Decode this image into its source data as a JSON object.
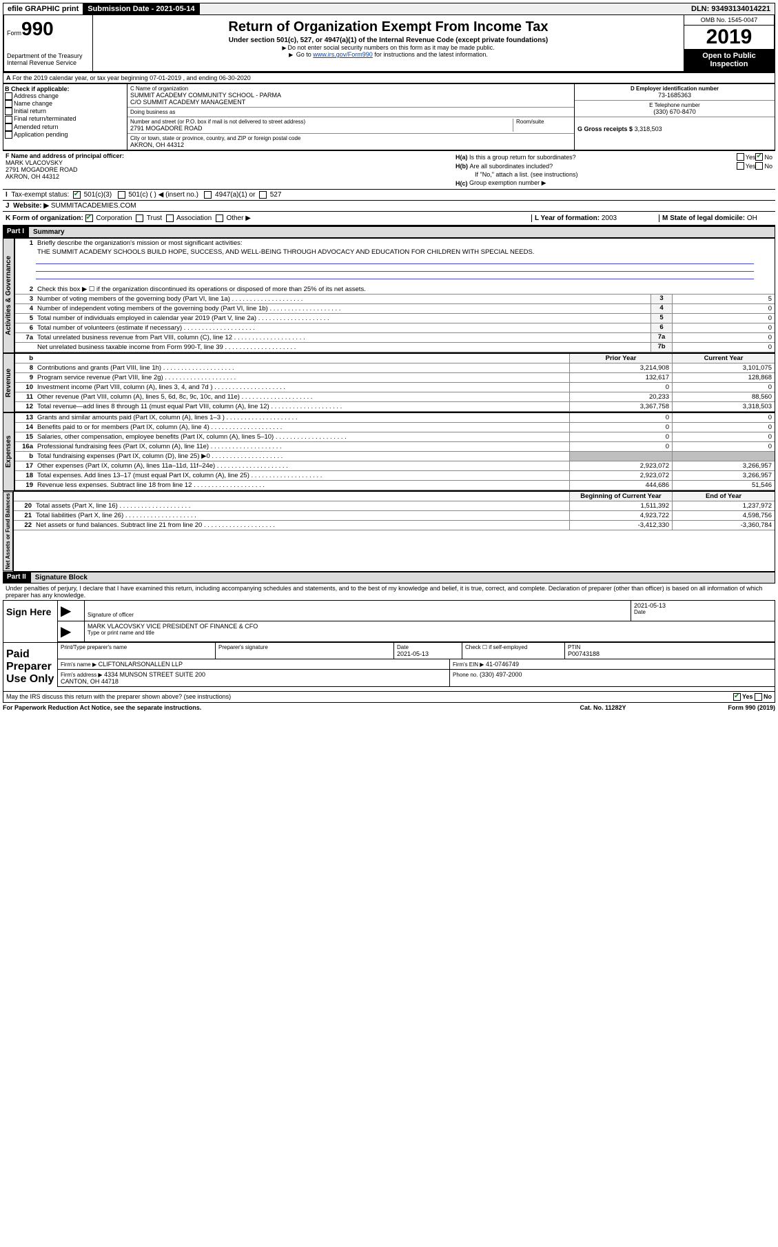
{
  "topbar": {
    "efile": "efile GRAPHIC print",
    "submission": "Submission Date - 2021-05-14",
    "dln": "DLN: 93493134014221"
  },
  "header": {
    "form_label": "Form",
    "form_no": "990",
    "title": "Return of Organization Exempt From Income Tax",
    "sub": "Under section 501(c), 527, or 4947(a)(1) of the Internal Revenue Code (except private foundations)",
    "note1": "Do not enter social security numbers on this form as it may be made public.",
    "note2a": "Go to ",
    "note2_link": "www.irs.gov/Form990",
    "note2b": " for instructions and the latest information.",
    "omb": "OMB No. 1545-0047",
    "year": "2019",
    "open": "Open to Public Inspection",
    "dept": "Department of the Treasury\nInternal Revenue Service"
  },
  "period": "For the 2019 calendar year, or tax year beginning 07-01-2019    , and ending 06-30-2020",
  "b": {
    "label": "B Check if applicable:",
    "items": [
      "Address change",
      "Name change",
      "Initial return",
      "Final return/terminated",
      "Amended return",
      "Application pending"
    ]
  },
  "c": {
    "name_lbl": "C Name of organization",
    "name": "SUMMIT ACADEMY COMMUNITY SCHOOL - PARMA\nC/O SUMMIT ACADEMY MANAGEMENT",
    "dba_lbl": "Doing business as",
    "dba": "",
    "addr_lbl": "Number and street (or P.O. box if mail is not delivered to street address)",
    "addr": "2791 MOGADORE ROAD",
    "room_lbl": "Room/suite",
    "city_lbl": "City or town, state or province, country, and ZIP or foreign postal code",
    "city": "AKRON, OH   44312"
  },
  "d": {
    "ein_lbl": "D Employer identification number",
    "ein": "73-1685363",
    "phone_lbl": "E Telephone number",
    "phone": "(330) 670-8470",
    "gross_lbl": "G Gross receipts $",
    "gross": "3,318,503"
  },
  "f": {
    "lbl": "F  Name and address of principal officer:",
    "name": "MARK VLACOVSKY",
    "addr1": "2791 MOGADORE ROAD",
    "addr2": "AKRON, OH   44312"
  },
  "h": {
    "a": "Is this a group return for subordinates?",
    "b": "Are all subordinates included?",
    "bnote": "If \"No,\" attach a list. (see instructions)",
    "c": "Group exemption number ▶",
    "yes": "Yes",
    "no": "No"
  },
  "i": {
    "lbl": "Tax-exempt status:",
    "o1": "501(c)(3)",
    "o2": "501(c) (   ) ◀ (insert no.)",
    "o3": "4947(a)(1) or",
    "o4": "527"
  },
  "j": {
    "lbl": "Website: ▶",
    "val": "SUMMITACADEMIES.COM"
  },
  "k": {
    "lbl": "K Form of organization:",
    "o1": "Corporation",
    "o2": "Trust",
    "o3": "Association",
    "o4": "Other ▶"
  },
  "l": {
    "lbl": "L Year of formation:",
    "val": "2003"
  },
  "m": {
    "lbl": "M State of legal domicile:",
    "val": "OH"
  },
  "part1": {
    "hdr": "Part I",
    "title": "Summary",
    "q1": "Briefly describe the organization's mission or most significant activities:",
    "mission": "THE SUMMIT ACADEMY SCHOOLS BUILD HOPE, SUCCESS, AND WELL-BEING THROUGH ADVOCACY AND EDUCATION FOR CHILDREN WITH SPECIAL NEEDS.",
    "q2": "Check this box ▶ ☐ if the organization discontinued its operations or disposed of more than 25% of its net assets.",
    "rows_gov": [
      {
        "n": "3",
        "d": "Number of voting members of the governing body (Part VI, line 1a)",
        "b": "3",
        "v": "5"
      },
      {
        "n": "4",
        "d": "Number of independent voting members of the governing body (Part VI, line 1b)",
        "b": "4",
        "v": "0"
      },
      {
        "n": "5",
        "d": "Total number of individuals employed in calendar year 2019 (Part V, line 2a)",
        "b": "5",
        "v": "0"
      },
      {
        "n": "6",
        "d": "Total number of volunteers (estimate if necessary)",
        "b": "6",
        "v": "0"
      },
      {
        "n": "7a",
        "d": "Total unrelated business revenue from Part VIII, column (C), line 12",
        "b": "7a",
        "v": "0"
      },
      {
        "n": "",
        "d": "Net unrelated business taxable income from Form 990-T, line 39",
        "b": "7b",
        "v": "0"
      }
    ],
    "col_prior": "Prior Year",
    "col_curr": "Current Year",
    "rev_rows": [
      {
        "n": "8",
        "d": "Contributions and grants (Part VIII, line 1h)",
        "p": "3,214,908",
        "c": "3,101,075"
      },
      {
        "n": "9",
        "d": "Program service revenue (Part VIII, line 2g)",
        "p": "132,617",
        "c": "128,868"
      },
      {
        "n": "10",
        "d": "Investment income (Part VIII, column (A), lines 3, 4, and 7d )",
        "p": "0",
        "c": "0"
      },
      {
        "n": "11",
        "d": "Other revenue (Part VIII, column (A), lines 5, 6d, 8c, 9c, 10c, and 11e)",
        "p": "20,233",
        "c": "88,560"
      },
      {
        "n": "12",
        "d": "Total revenue—add lines 8 through 11 (must equal Part VIII, column (A), line 12)",
        "p": "3,367,758",
        "c": "3,318,503"
      }
    ],
    "exp_rows": [
      {
        "n": "13",
        "d": "Grants and similar amounts paid (Part IX, column (A), lines 1–3 )",
        "p": "0",
        "c": "0"
      },
      {
        "n": "14",
        "d": "Benefits paid to or for members (Part IX, column (A), line 4)",
        "p": "0",
        "c": "0"
      },
      {
        "n": "15",
        "d": "Salaries, other compensation, employee benefits (Part IX, column (A), lines 5–10)",
        "p": "0",
        "c": "0"
      },
      {
        "n": "16a",
        "d": "Professional fundraising fees (Part IX, column (A), line 11e)",
        "p": "0",
        "c": "0"
      },
      {
        "n": "b",
        "d": "Total fundraising expenses (Part IX, column (D), line 25) ▶0",
        "p": "",
        "c": ""
      },
      {
        "n": "17",
        "d": "Other expenses (Part IX, column (A), lines 11a–11d, 11f–24e)",
        "p": "2,923,072",
        "c": "3,266,957"
      },
      {
        "n": "18",
        "d": "Total expenses. Add lines 13–17 (must equal Part IX, column (A), line 25)",
        "p": "2,923,072",
        "c": "3,266,957"
      },
      {
        "n": "19",
        "d": "Revenue less expenses. Subtract line 18 from line 12",
        "p": "444,686",
        "c": "51,546"
      }
    ],
    "col_begin": "Beginning of Current Year",
    "col_end": "End of Year",
    "net_rows": [
      {
        "n": "20",
        "d": "Total assets (Part X, line 16)",
        "p": "1,511,392",
        "c": "1,237,972"
      },
      {
        "n": "21",
        "d": "Total liabilities (Part X, line 26)",
        "p": "4,923,722",
        "c": "4,598,756"
      },
      {
        "n": "22",
        "d": "Net assets or fund balances. Subtract line 21 from line 20",
        "p": "-3,412,330",
        "c": "-3,360,784"
      }
    ]
  },
  "vtabs": {
    "gov": "Activities & Governance",
    "rev": "Revenue",
    "exp": "Expenses",
    "net": "Net Assets or\nFund Balances"
  },
  "part2": {
    "hdr": "Part II",
    "title": "Signature Block",
    "decl": "Under penalties of perjury, I declare that I have examined this return, including accompanying schedules and statements, and to the best of my knowledge and belief, it is true, correct, and complete. Declaration of preparer (other than officer) is based on all information of which preparer has any knowledge.",
    "sign_here": "Sign Here",
    "sig_officer": "Signature of officer",
    "date": "Date",
    "sig_date": "2021-05-13",
    "officer_name": "MARK VLACOVSKY  VICE PRESIDENT OF FINANCE & CFO",
    "type_name": "Type or print name and title",
    "paid": "Paid Preparer Use Only",
    "prep_name_lbl": "Print/Type preparer's name",
    "prep_sig_lbl": "Preparer's signature",
    "prep_date": "2021-05-13",
    "check_self": "Check ☐ if self-employed",
    "ptin_lbl": "PTIN",
    "ptin": "P00743188",
    "firm_name_lbl": "Firm's name     ▶",
    "firm_name": "CLIFTONLARSONALLEN LLP",
    "firm_ein_lbl": "Firm's EIN ▶",
    "firm_ein": "41-0746749",
    "firm_addr_lbl": "Firm's address ▶",
    "firm_addr": "4334 MUNSON STREET SUITE 200\nCANTON, OH   44718",
    "phone_lbl": "Phone no.",
    "phone": "(330) 497-2000",
    "discuss": "May the IRS discuss this return with the preparer shown above? (see instructions)"
  },
  "footer": {
    "pra": "For Paperwork Reduction Act Notice, see the separate instructions.",
    "cat": "Cat. No. 11282Y",
    "form": "Form 990 (2019)"
  }
}
